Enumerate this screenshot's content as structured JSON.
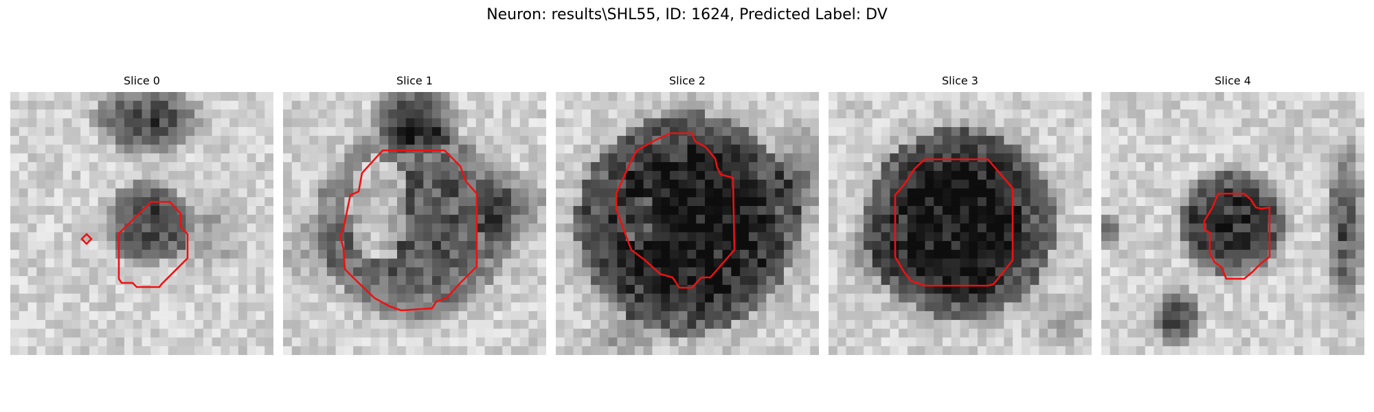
{
  "figure": {
    "title": "Neuron: results\\SHL55, ID: 1624, Predicted Label: DV"
  },
  "overlay_color": "#ee1111",
  "slices": [
    {
      "label": "Slice 0",
      "cell_level": 0.55,
      "cell_radius": 0.16,
      "cell_offset": [
        0.02,
        0.0
      ],
      "cell_ring_level": 0.62
    },
    {
      "label": "Slice 1",
      "cell_level": 0.5,
      "cell_radius": 0.37,
      "cell_offset": [
        0.0,
        0.0
      ],
      "cell_ring_level": 0.65
    },
    {
      "label": "Slice 2",
      "cell_level": 0.8,
      "cell_radius": 0.42,
      "cell_offset": [
        0.0,
        0.0
      ],
      "cell_ring_level": 0.6
    },
    {
      "label": "Slice 3",
      "cell_level": 0.8,
      "cell_radius": 0.36,
      "cell_offset": [
        0.0,
        0.0
      ],
      "cell_ring_level": 0.55
    },
    {
      "label": "Slice 4",
      "cell_level": 0.7,
      "cell_radius": 0.2,
      "cell_offset": [
        0.0,
        0.0
      ],
      "cell_ring_level": 0.45
    }
  ]
}
